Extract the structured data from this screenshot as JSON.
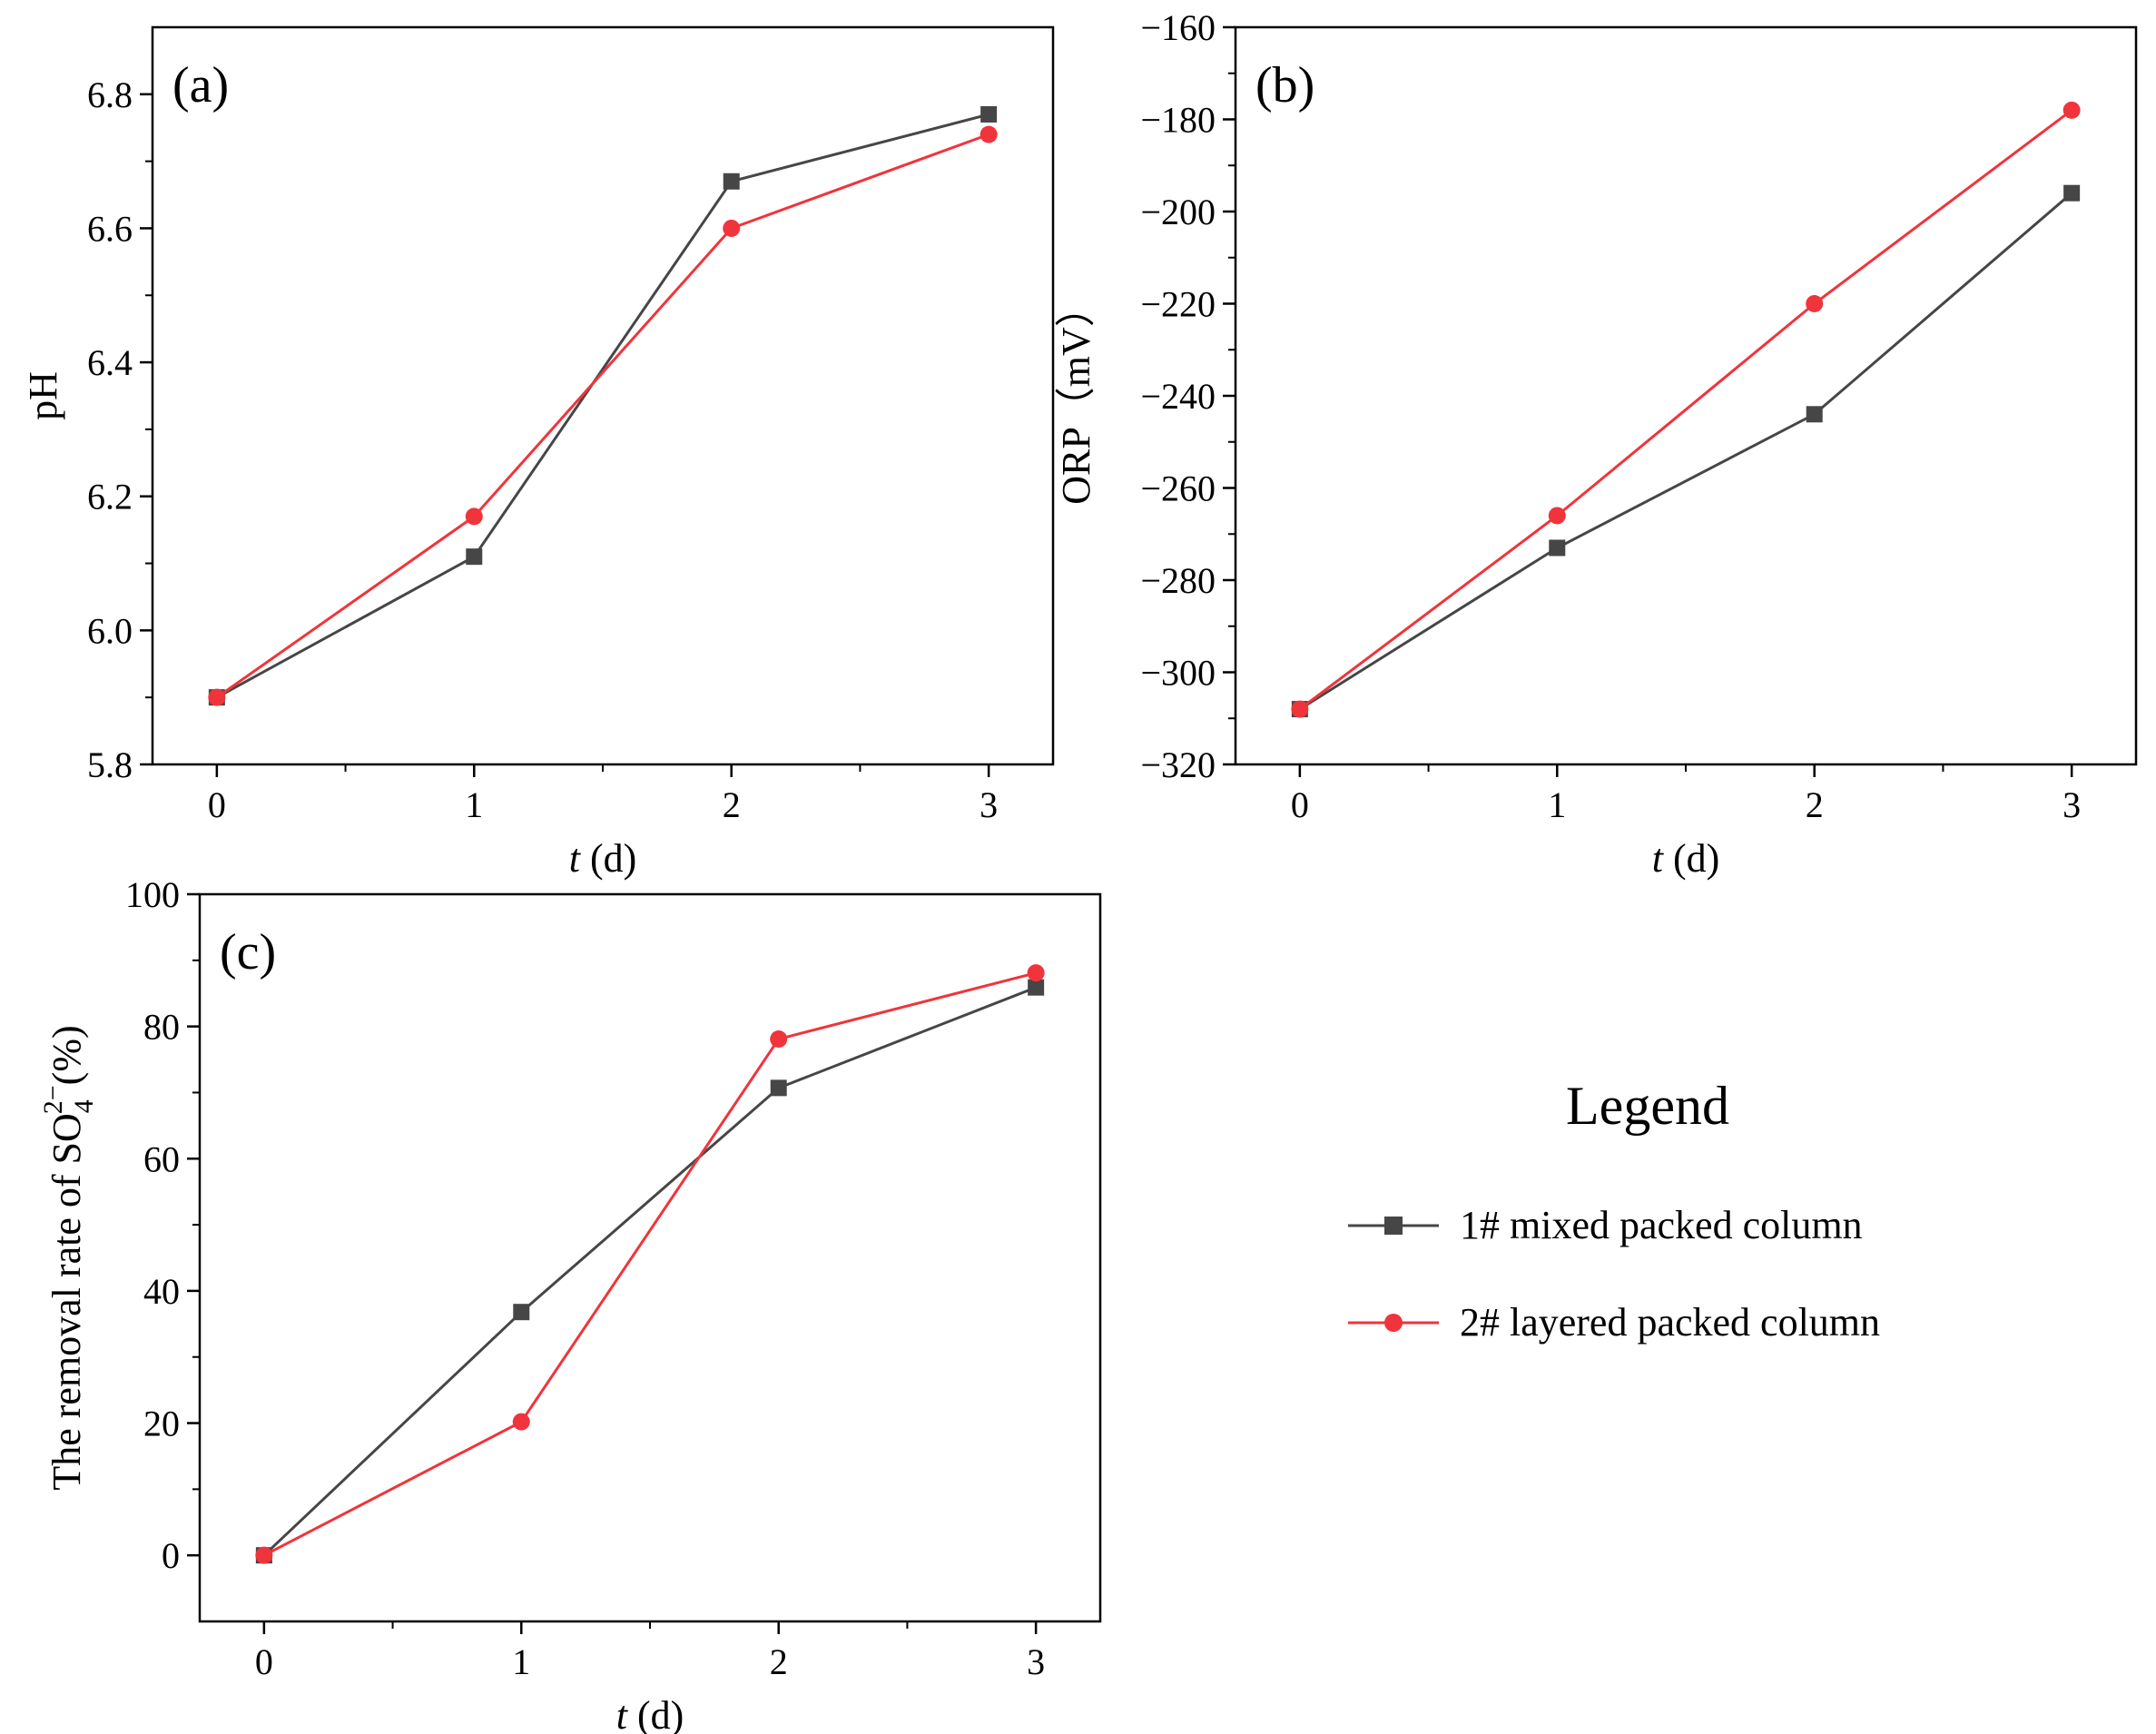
{
  "legend": {
    "title": "Legend",
    "entries": [
      "1# mixed packed column",
      "2# layered packed column"
    ],
    "position": "right"
  },
  "colors": {
    "series1": "#464646",
    "series2": "#f0343b",
    "axis": "#000000"
  },
  "chart_data": [
    {
      "type": "line",
      "panel": "(a)",
      "title": "",
      "xlabel_italic": "t",
      "xlabel_rest": " (d)",
      "ylabel": "pH",
      "x": [
        0,
        1,
        2,
        3
      ],
      "xticks": [
        0,
        1,
        2,
        3
      ],
      "xlim": [
        -0.25,
        3.25
      ],
      "ylim": [
        5.8,
        6.9
      ],
      "yticks": [
        5.8,
        6.0,
        6.2,
        6.4,
        6.6,
        6.8
      ],
      "ytick_labels": [
        "5.8",
        "6.0",
        "6.2",
        "6.4",
        "6.6",
        "6.8"
      ],
      "series": [
        {
          "name": "1# mixed packed column",
          "marker": "square",
          "values": [
            5.9,
            6.11,
            6.67,
            6.77
          ]
        },
        {
          "name": "2# layered packed column",
          "marker": "circle",
          "values": [
            5.9,
            6.17,
            6.6,
            6.74
          ]
        }
      ]
    },
    {
      "type": "line",
      "panel": "(b)",
      "title": "",
      "xlabel_italic": "t",
      "xlabel_rest": " (d)",
      "ylabel": "ORP（mV）",
      "x": [
        0,
        1,
        2,
        3
      ],
      "xticks": [
        0,
        1,
        2,
        3
      ],
      "xlim": [
        -0.25,
        3.25
      ],
      "ylim": [
        -320,
        -160
      ],
      "yticks": [
        -320,
        -300,
        -280,
        -260,
        -240,
        -220,
        -200,
        -180,
        -160
      ],
      "ytick_labels": [
        "−320",
        "−300",
        "−280",
        "−260",
        "−240",
        "−220",
        "−200",
        "−180",
        "−160"
      ],
      "series": [
        {
          "name": "1# mixed packed column",
          "marker": "square",
          "values": [
            -308,
            -273,
            -244,
            -196
          ]
        },
        {
          "name": "2# layered packed column",
          "marker": "circle",
          "values": [
            -308,
            -266,
            -220,
            -178
          ]
        }
      ]
    },
    {
      "type": "line",
      "panel": "(c)",
      "title": "",
      "xlabel_italic": "t",
      "xlabel_rest": " (d)",
      "ylabel_main": "The removal rate of SO",
      "ylabel_sub": "4",
      "ylabel_sup": "2−",
      "ylabel_tail": "(%)",
      "x": [
        0,
        1,
        2,
        3
      ],
      "xticks": [
        0,
        1,
        2,
        3
      ],
      "xlim": [
        -0.25,
        3.25
      ],
      "ylim": [
        -10,
        100
      ],
      "yticks": [
        0,
        20,
        40,
        60,
        80,
        100
      ],
      "ytick_labels": [
        "0",
        "20",
        "40",
        "60",
        "80",
        "100"
      ],
      "series": [
        {
          "name": "1# mixed packed column",
          "marker": "square",
          "values": [
            0,
            36.8,
            70.7,
            85.9
          ]
        },
        {
          "name": "2# layered packed column",
          "marker": "circle",
          "values": [
            0,
            20.2,
            78.1,
            88.1
          ]
        }
      ]
    }
  ]
}
